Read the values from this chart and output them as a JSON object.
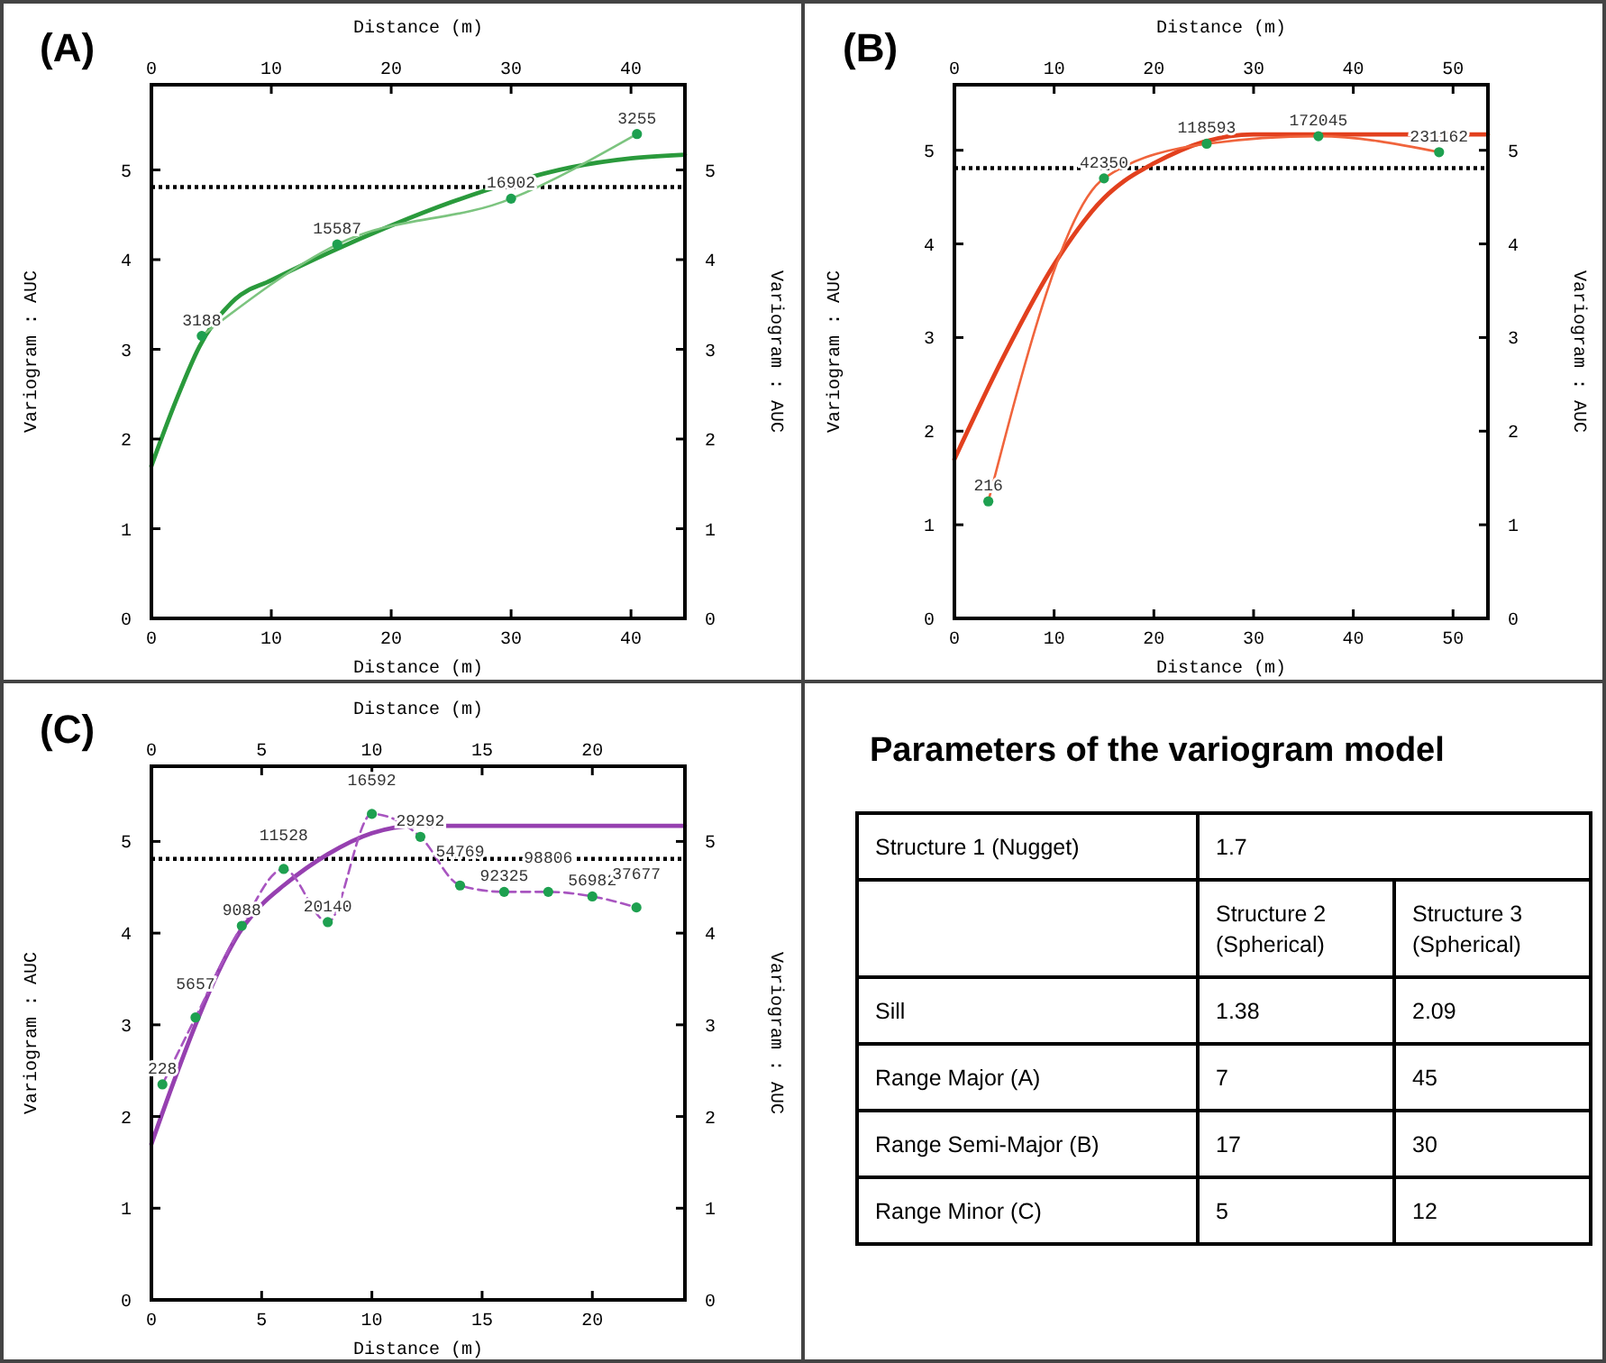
{
  "chart_data": [
    {
      "type": "line",
      "title": "(A)",
      "xlabel": "Distance (m)",
      "x2label": "Distance (m)",
      "ylabel": "Variogram : AUC",
      "y2label": "Variogram : AUC",
      "xlim": [
        0,
        44.5
      ],
      "xticks": [
        0,
        10,
        20,
        30,
        40
      ],
      "x2lim": [
        0,
        44.5
      ],
      "x2ticks": [
        0,
        10,
        20,
        30,
        40
      ],
      "ylim": [
        0,
        5.95
      ],
      "yticks": [
        0,
        1,
        2,
        3,
        4,
        5
      ],
      "y2lim": [
        0,
        5.95
      ],
      "y2ticks": [
        0,
        1,
        2,
        3,
        4,
        5
      ],
      "ref_lines": [
        {
          "axis": "y",
          "value": 4.81,
          "color": "#000000",
          "line_style": "dotted"
        }
      ],
      "series": [
        {
          "type": "line",
          "color": "#2a9a3c",
          "line_style": "solid",
          "marker": "none",
          "x": [
            0,
            2,
            4,
            7,
            10,
            15,
            20,
            25,
            30,
            35,
            40,
            44.5
          ],
          "values": [
            1.7,
            2.41,
            3.03,
            3.56,
            3.77,
            4.09,
            4.38,
            4.64,
            4.86,
            5.03,
            5.13,
            5.17
          ]
        },
        {
          "type": "line",
          "color": "#7cc47f",
          "line_style": "solid",
          "marker": "none",
          "x": [
            4.2,
            15.5,
            30,
            40.5
          ],
          "values": [
            3.15,
            4.17,
            4.68,
            5.4
          ]
        },
        {
          "type": "scatter",
          "color": "#1ea050",
          "marker": "circle",
          "x": [
            4.2,
            15.5,
            30,
            40.5
          ],
          "values": [
            3.15,
            4.17,
            4.68,
            5.4
          ]
        }
      ],
      "annotations": [
        {
          "text": "3188",
          "x": 4.2,
          "y": 3.15
        },
        {
          "text": "15587",
          "x": 15.5,
          "y": 4.17
        },
        {
          "text": "16902",
          "x": 30,
          "y": 4.68
        },
        {
          "text": "3255",
          "x": 40.5,
          "y": 5.4
        }
      ]
    },
    {
      "type": "line",
      "title": "(B)",
      "xlabel": "Distance (m)",
      "x2label": "Distance (m)",
      "ylabel": "Variogram : AUC",
      "y2label": "Variogram : AUC",
      "xlim": [
        0,
        53.5
      ],
      "xticks": [
        0,
        10,
        20,
        30,
        40,
        50
      ],
      "x2lim": [
        0,
        53.5
      ],
      "x2ticks": [
        0,
        10,
        20,
        30,
        40,
        50
      ],
      "ylim": [
        0,
        5.7
      ],
      "yticks": [
        0,
        1,
        2,
        3,
        4,
        5
      ],
      "y2lim": [
        0,
        5.7
      ],
      "y2ticks": [
        0,
        1,
        2,
        3,
        4,
        5
      ],
      "ref_lines": [
        {
          "axis": "y",
          "value": 4.81,
          "color": "#000000",
          "line_style": "dotted"
        }
      ],
      "series": [
        {
          "type": "line",
          "color": "#e2401e",
          "line_style": "solid",
          "marker": "none",
          "x": [
            0,
            5,
            10,
            15,
            17,
            20,
            25,
            30,
            53.5
          ],
          "values": [
            1.7,
            2.81,
            3.78,
            4.49,
            4.67,
            4.86,
            5.09,
            5.17,
            5.17
          ]
        },
        {
          "type": "line",
          "color": "#f0643c",
          "line_style": "solid",
          "marker": "none",
          "x": [
            3.4,
            15,
            25.3,
            36.5,
            48.6
          ],
          "values": [
            1.25,
            4.7,
            5.07,
            5.15,
            4.98
          ]
        },
        {
          "type": "scatter",
          "color": "#1ea050",
          "marker": "circle",
          "x": [
            3.4,
            15,
            25.3,
            36.5,
            48.6
          ],
          "values": [
            1.25,
            4.7,
            5.07,
            5.15,
            4.98
          ]
        }
      ],
      "annotations": [
        {
          "text": "216",
          "x": 3.4,
          "y": 1.25
        },
        {
          "text": "42350",
          "x": 15,
          "y": 4.7
        },
        {
          "text": "118593",
          "x": 25.3,
          "y": 5.07
        },
        {
          "text": "172045",
          "x": 36.5,
          "y": 5.15
        },
        {
          "text": "231162",
          "x": 48.6,
          "y": 4.98
        }
      ]
    },
    {
      "type": "line",
      "title": "(C)",
      "xlabel": "Distance (m)",
      "x2label": "Distance (m)",
      "ylabel": "Variogram : AUC",
      "y2label": "Variogram : AUC",
      "xlim": [
        0,
        24.2
      ],
      "xticks": [
        0,
        5,
        10,
        15,
        20
      ],
      "x2lim": [
        0,
        24.2
      ],
      "x2ticks": [
        0,
        5,
        10,
        15,
        20
      ],
      "ylim": [
        0,
        5.82
      ],
      "yticks": [
        0,
        1,
        2,
        3,
        4,
        5
      ],
      "y2lim": [
        0,
        5.82
      ],
      "y2ticks": [
        0,
        1,
        2,
        3,
        4,
        5
      ],
      "ref_lines": [
        {
          "axis": "y",
          "value": 4.81,
          "color": "#000000",
          "line_style": "dotted"
        }
      ],
      "series": [
        {
          "type": "line",
          "color": "#9640b0",
          "line_style": "solid",
          "marker": "none",
          "x": [
            0,
            1,
            2,
            3,
            4,
            5,
            6,
            8,
            10,
            12,
            24.2
          ],
          "values": [
            1.7,
            2.37,
            3.0,
            3.56,
            4.01,
            4.31,
            4.52,
            4.86,
            5.09,
            5.17,
            5.17
          ]
        },
        {
          "type": "line",
          "color": "#a855c0",
          "line_style": "dashed",
          "marker": "none",
          "x": [
            0.5,
            2,
            4.1,
            6,
            8,
            10,
            12.2,
            14,
            16,
            18,
            20,
            22
          ],
          "values": [
            2.35,
            3.08,
            4.08,
            4.7,
            4.12,
            5.3,
            5.05,
            4.52,
            4.45,
            4.45,
            4.4,
            4.28
          ]
        },
        {
          "type": "scatter",
          "color": "#1ea050",
          "marker": "circle",
          "x": [
            0.5,
            2,
            4.1,
            6,
            8,
            10,
            12.2,
            14,
            16,
            18,
            20,
            22
          ],
          "values": [
            2.35,
            3.08,
            4.08,
            4.7,
            4.12,
            5.3,
            5.05,
            4.52,
            4.45,
            4.45,
            4.4,
            4.28
          ]
        }
      ],
      "annotations": [
        {
          "text": "228",
          "x": 0.5,
          "y": 2.35
        },
        {
          "text": "5657",
          "x": 2,
          "y": 3.08
        },
        {
          "text": "9088",
          "x": 4.1,
          "y": 4.08
        },
        {
          "text": "11528",
          "x": 6,
          "y": 4.7
        },
        {
          "text": "20140",
          "x": 8,
          "y": 4.12
        },
        {
          "text": "16592",
          "x": 10,
          "y": 5.3
        },
        {
          "text": "29292",
          "x": 12.2,
          "y": 5.05
        },
        {
          "text": "54769",
          "x": 14,
          "y": 4.52
        },
        {
          "text": "92325",
          "x": 16,
          "y": 4.45
        },
        {
          "text": "98806",
          "x": 18,
          "y": 4.45
        },
        {
          "text": "56982",
          "x": 20,
          "y": 4.4
        },
        {
          "text": "37677",
          "x": 22,
          "y": 4.28
        }
      ]
    },
    {
      "type": "other",
      "title": "Parameters of the variogram model",
      "cell_labels": [
        [
          "Structure 1 (Nugget)",
          "1.7",
          null
        ],
        [
          null,
          "Structure 2 (Spherical)",
          "Structure 3 (Spherical)"
        ],
        [
          "Sill",
          "1.38",
          "2.09"
        ],
        [
          "Range Major (A)",
          "7",
          "45"
        ],
        [
          "Range Semi-Major (B)",
          "17",
          "30"
        ],
        [
          "Range Minor (C)",
          "5",
          "12"
        ]
      ]
    }
  ]
}
